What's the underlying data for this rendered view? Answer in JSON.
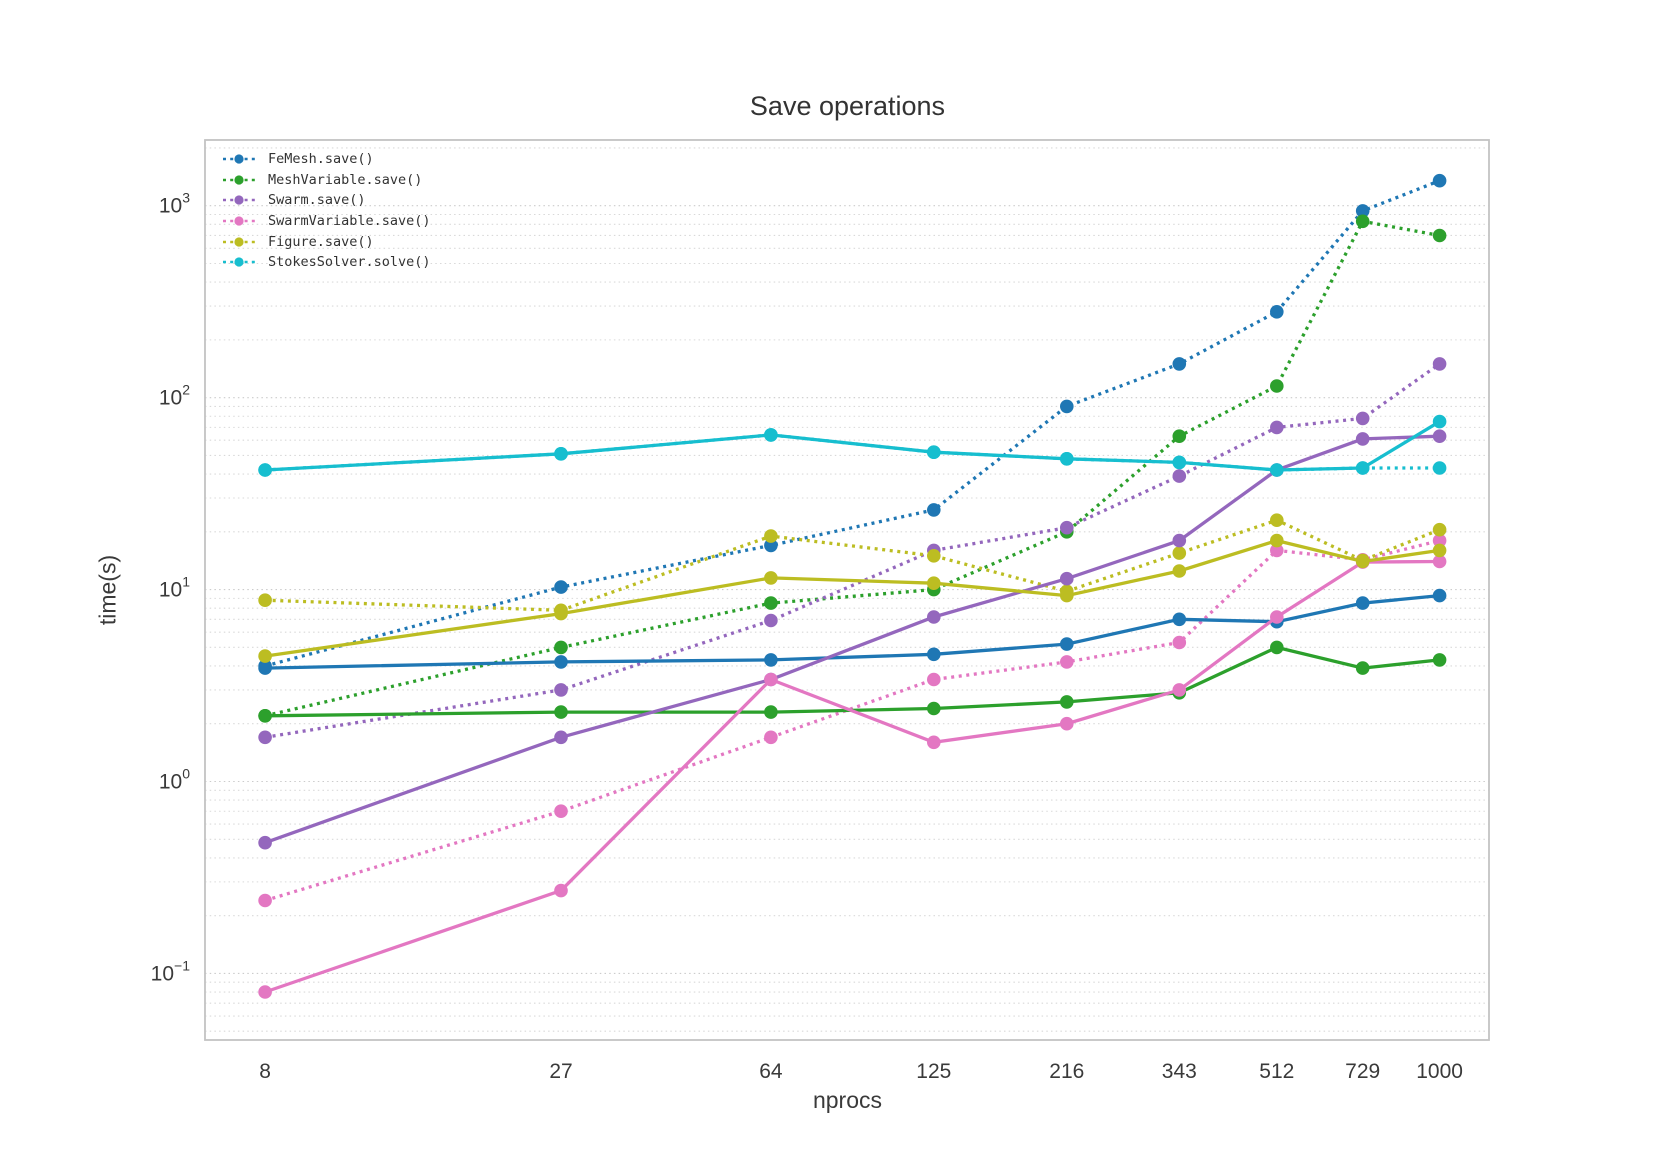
{
  "title": "Save operations",
  "axes": {
    "xlabel": "nprocs",
    "ylabel": "time(s)"
  },
  "colors": {
    "background": "#ffffff",
    "text": "#3a3a3a",
    "title_text": "#333333",
    "grid_minor": "#d9d9d9",
    "grid_major": "#cccccc",
    "spine": "#c3c3c3"
  },
  "chart_data": {
    "type": "line",
    "x_scale": "log",
    "y_scale": "log",
    "grid": true,
    "legend_position": "upper left",
    "x": [
      8,
      27,
      64,
      125,
      216,
      343,
      512,
      729,
      1000
    ],
    "x_tick_labels": [
      "8",
      "27",
      "64",
      "125",
      "216",
      "343",
      "512",
      "729",
      "1000"
    ],
    "y_tick_exponents": [
      3,
      2,
      1,
      0,
      -1
    ],
    "xlim": [
      6.25,
      1225
    ],
    "ylim": [
      0.045,
      2200
    ],
    "series": [
      {
        "name": "FeMesh.save()",
        "color": "#1f77b4",
        "line_style": "dotted",
        "in_legend": true,
        "values": [
          4.0,
          10.3,
          17,
          26,
          90,
          150,
          280,
          940,
          1350
        ]
      },
      {
        "name": "MeshVariable.save()",
        "color": "#2ca02c",
        "line_style": "dotted",
        "in_legend": true,
        "values": [
          2.2,
          5.0,
          8.5,
          10,
          20,
          63,
          115,
          830,
          700
        ]
      },
      {
        "name": "Swarm.save()",
        "color": "#9467bd",
        "line_style": "dotted",
        "in_legend": true,
        "values": [
          1.7,
          3.0,
          6.9,
          16,
          21,
          39,
          70,
          78,
          150
        ]
      },
      {
        "name": "SwarmVariable.save()",
        "color": "#e377c2",
        "line_style": "dotted",
        "in_legend": true,
        "values": [
          0.24,
          0.7,
          1.7,
          3.4,
          4.2,
          5.3,
          16,
          14.3,
          18
        ]
      },
      {
        "name": "Figure.save()",
        "color": "#bcbd22",
        "line_style": "dotted",
        "in_legend": true,
        "values": [
          8.8,
          7.8,
          19,
          15,
          9.8,
          15.5,
          23,
          14.2,
          20.5
        ]
      },
      {
        "name": "StokesSolver.solve()",
        "color": "#17becf",
        "line_style": "dotted",
        "in_legend": true,
        "values": [
          42,
          51,
          64,
          52,
          48,
          46,
          42,
          43,
          43
        ]
      },
      {
        "name": "FeMesh.save()",
        "color": "#1f77b4",
        "line_style": "solid",
        "in_legend": false,
        "values": [
          3.9,
          4.2,
          4.3,
          4.6,
          5.2,
          7.0,
          6.8,
          8.5,
          9.3
        ]
      },
      {
        "name": "MeshVariable.save()",
        "color": "#2ca02c",
        "line_style": "solid",
        "in_legend": false,
        "values": [
          2.2,
          2.3,
          2.3,
          2.4,
          2.6,
          2.9,
          5.0,
          3.9,
          4.3
        ]
      },
      {
        "name": "Swarm.save()",
        "color": "#9467bd",
        "line_style": "solid",
        "in_legend": false,
        "values": [
          0.48,
          1.7,
          3.4,
          7.2,
          11.4,
          18,
          42,
          61,
          63
        ]
      },
      {
        "name": "SwarmVariable.save()",
        "color": "#e377c2",
        "line_style": "solid",
        "in_legend": false,
        "values": [
          0.08,
          0.27,
          3.4,
          1.6,
          2.0,
          3.0,
          7.2,
          13.9,
          14
        ]
      },
      {
        "name": "Figure.save()",
        "color": "#bcbd22",
        "line_style": "solid",
        "in_legend": false,
        "values": [
          4.5,
          7.5,
          11.5,
          10.8,
          9.3,
          12.5,
          18,
          14,
          16
        ]
      },
      {
        "name": "StokesSolver.solve()",
        "color": "#17becf",
        "line_style": "solid",
        "in_legend": false,
        "values": [
          42,
          51,
          64,
          52,
          48,
          46,
          42,
          43,
          75
        ]
      }
    ]
  }
}
